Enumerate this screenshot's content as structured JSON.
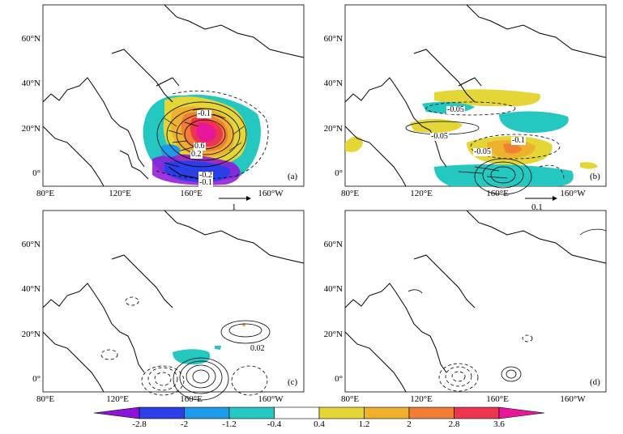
{
  "panels": [
    {
      "id": "a",
      "label": "(a)",
      "lat_ticks": [
        "60°N",
        "40°N",
        "20°N",
        "0°"
      ],
      "lon_ticks": [
        "80°E",
        "120°E",
        "160°E",
        "160°W"
      ],
      "contour_labels": [
        "-0.1",
        "0.6",
        "0.2",
        "-0.2",
        "-0.1"
      ],
      "ref_vector": "1"
    },
    {
      "id": "b",
      "label": "(b)",
      "lat_ticks": [
        "60°N",
        "40°N",
        "20°N",
        "0°"
      ],
      "lon_ticks": [
        "80°E",
        "120°E",
        "160°E",
        "160°W"
      ],
      "contour_labels": [
        "-0.05",
        "-0.05",
        "-0.1",
        "-0.05"
      ],
      "ref_vector": "0.1"
    },
    {
      "id": "c",
      "label": "(c)",
      "lat_ticks": [
        "60°N",
        "40°N",
        "20°N",
        "0°"
      ],
      "lon_ticks": [
        "80°E",
        "120°E",
        "160°E",
        "160°W"
      ],
      "contour_labels": [
        "0.02"
      ],
      "ref_vector": ""
    },
    {
      "id": "d",
      "label": "(d)",
      "lat_ticks": [
        "60°N",
        "40°N",
        "20°N",
        "0°"
      ],
      "lon_ticks": [
        "80°E",
        "120°E",
        "160°E",
        "160°W"
      ],
      "contour_labels": [],
      "ref_vector": ""
    }
  ],
  "colorbar": {
    "ticks": [
      "-2.8",
      "-2",
      "-1.2",
      "-0.4",
      "0.4",
      "1.2",
      "2",
      "2.8",
      "3.6"
    ],
    "colors": [
      "#8f12d8",
      "#2c3fe6",
      "#1e9be8",
      "#25c8c0",
      "#ffffff",
      "#e3d636",
      "#eeb02d",
      "#ee7f34",
      "#ec3650",
      "#e8169a"
    ]
  }
}
